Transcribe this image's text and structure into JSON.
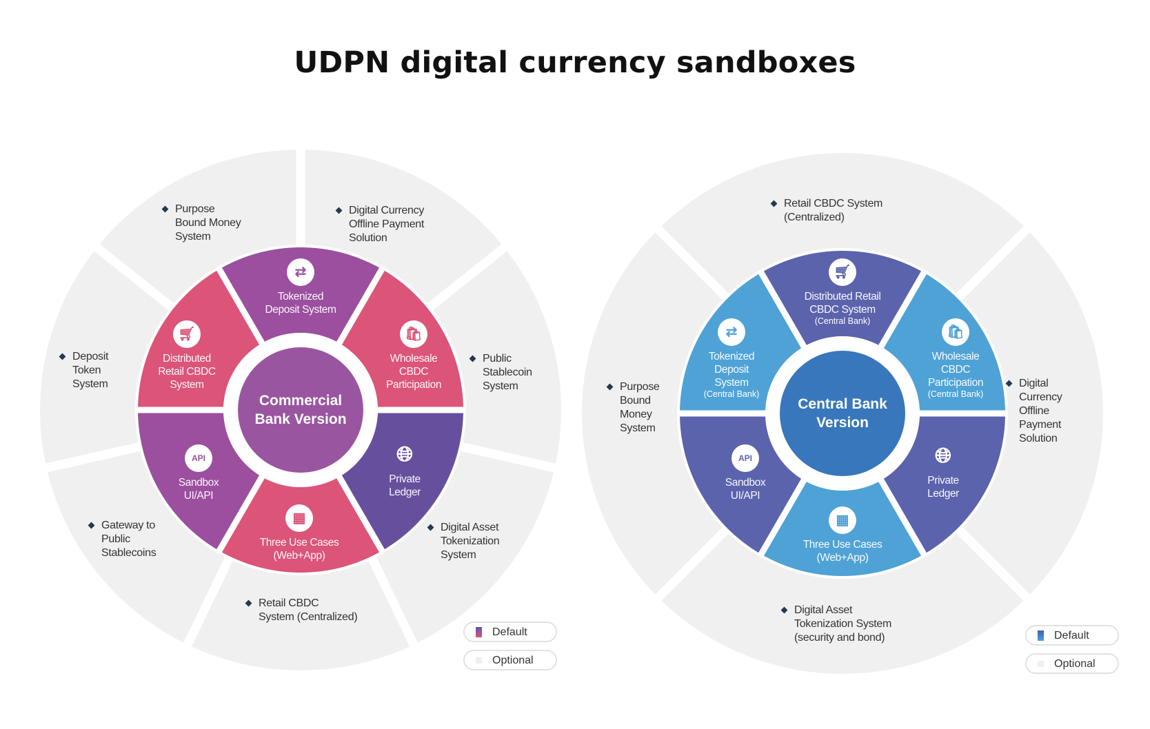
{
  "title": "UDPN digital currency sandboxes",
  "colors": {
    "outer_ring": "#f0f0f0",
    "commercial_purple": "#9b4f9e",
    "commercial_pink": "#dc5478",
    "commercial_indigo": "#66509e",
    "commercial_center": "#9a55a0",
    "central_indigo": "#5b63ad",
    "central_lightblue": "#4ea2d6",
    "central_center": "#3877bb",
    "bullet": "#24384f"
  },
  "commercial": {
    "center_label": "Commercial\nBank Version",
    "inner": [
      {
        "label": "Tokenized\nDeposit System",
        "icon": "tokenized-deposit-icon",
        "color": "#9b4f9e"
      },
      {
        "label": "Wholesale\nCBDC\nParticipation",
        "icon": "shopping-bag-icon",
        "color": "#dc5478"
      },
      {
        "label": "Private\nLedger",
        "icon": "globe-user-icon",
        "color": "#66509e"
      },
      {
        "label": "Three Use Cases\n(Web+App)",
        "icon": "grid-icon",
        "color": "#dc5478"
      },
      {
        "label": "Sandbox\nUI/API",
        "icon": "api-icon",
        "color": "#9b4f9e"
      },
      {
        "label": "Distributed\nRetail CBDC\nSystem",
        "icon": "shopping-cart-icon",
        "color": "#dc5478"
      }
    ],
    "outer": [
      {
        "label": "Purpose\nBound Money\nSystem"
      },
      {
        "label": "Digital Currency\nOffline Payment\nSolution"
      },
      {
        "label": "Deposit\nToken\nSystem"
      },
      {
        "label": "Public\nStablecoin\nSystem"
      },
      {
        "label": "Gateway to\nPublic\nStablecoins"
      },
      {
        "label": "Digital Asset\nTokenization\nSystem"
      },
      {
        "label": "Retail CBDC\nSystem (Centralized)"
      }
    ]
  },
  "central": {
    "center_label": "Central Bank\nVersion",
    "inner": [
      {
        "label": "Distributed Retail\nCBDC System",
        "sub": "(Central Bank)",
        "icon": "shopping-cart-icon",
        "color": "#5b63ad"
      },
      {
        "label": "Wholesale\nCBDC\nParticipation",
        "sub": "(Central Bank)",
        "icon": "shopping-bag-icon",
        "color": "#4ea2d6"
      },
      {
        "label": "Private\nLedger",
        "icon": "globe-user-icon",
        "color": "#5b63ad"
      },
      {
        "label": "Three Use Cases\n(Web+App)",
        "icon": "grid-icon",
        "color": "#4ea2d6"
      },
      {
        "label": "Sandbox\nUI/API",
        "icon": "api-icon",
        "color": "#5b63ad"
      },
      {
        "label": "Tokenized\nDeposit\nSystem",
        "sub": "(Central Bank)",
        "icon": "tokenized-deposit-icon",
        "color": "#4ea2d6"
      }
    ],
    "outer": [
      {
        "label": "Retail CBDC System\n(Centralized)"
      },
      {
        "label": "Purpose\nBound\nMoney\nSystem"
      },
      {
        "label": "Digital\nCurrency\nOffline\nPayment\nSolution"
      },
      {
        "label": "Digital Asset\nTokenization System\n(security and bond)"
      }
    ]
  },
  "legend": {
    "default": "Default",
    "optional": "Optional"
  }
}
